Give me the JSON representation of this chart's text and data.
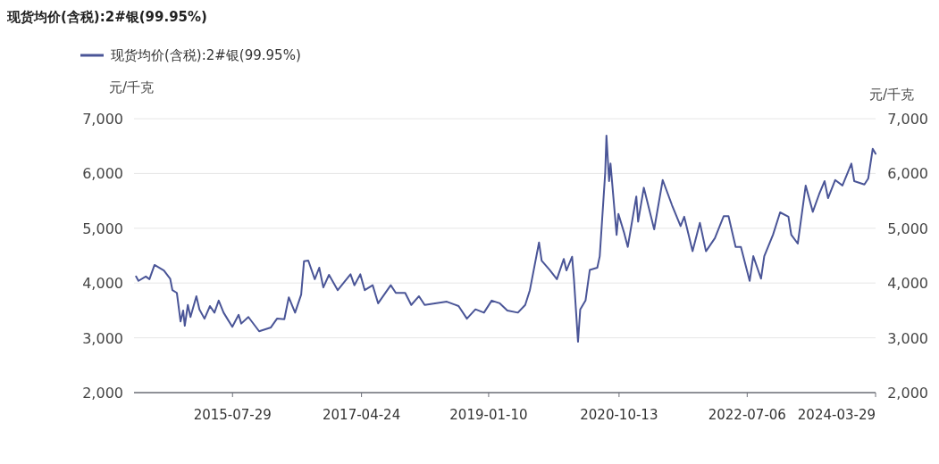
{
  "chart_data": {
    "type": "line",
    "title": "现货均价(含税):2#银(99.95%)",
    "ylabel": "元/千克",
    "y2label": "元/千克",
    "xlim": [
      "2014-03-31",
      "2024-03-29"
    ],
    "xticks": [
      {
        "value": "2015-07-29",
        "label": "2015-07-29"
      },
      {
        "value": "2017-04-24",
        "label": "2017-04-24"
      },
      {
        "value": "2019-01-10",
        "label": "2019-01-10"
      },
      {
        "value": "2020-10-13",
        "label": "2020-10-13"
      },
      {
        "value": "2022-07-06",
        "label": "2022-07-06"
      },
      {
        "value": "2024-03-29",
        "label": "2024-03-29"
      }
    ],
    "ylim": [
      2000,
      7000
    ],
    "yticks": [
      {
        "value": 2000,
        "label": "2,000"
      },
      {
        "value": 3000,
        "label": "3,000"
      },
      {
        "value": 4000,
        "label": "4,000"
      },
      {
        "value": 5000,
        "label": "5,000"
      },
      {
        "value": 6000,
        "label": "6,000"
      },
      {
        "value": 7000,
        "label": "7,000"
      }
    ],
    "y2lim": [
      2000,
      7000
    ],
    "y2ticks": [
      {
        "value": 2000,
        "label": "2,000"
      },
      {
        "value": 3000,
        "label": "3,000"
      },
      {
        "value": 4000,
        "label": "4,000"
      },
      {
        "value": 5000,
        "label": "5,000"
      },
      {
        "value": 6000,
        "label": "6,000"
      },
      {
        "value": 7000,
        "label": "7,000"
      }
    ],
    "grid": "y",
    "legend": "top left",
    "marker": "none",
    "line_style": "solid",
    "series": [
      {
        "name": "现货均价(含税):2#银(99.95%)",
        "color": "#4a5597",
        "x": [
          "2014-04-10",
          "2014-04-22",
          "2014-05-28",
          "2014-06-15",
          "2014-07-10",
          "2014-08-25",
          "2014-09-25",
          "2014-10-06",
          "2014-10-28",
          "2014-11-15",
          "2014-11-28",
          "2014-12-06",
          "2014-12-21",
          "2015-01-03",
          "2015-02-01",
          "2015-02-16",
          "2015-03-13",
          "2015-04-09",
          "2015-05-01",
          "2015-05-22",
          "2015-06-15",
          "2015-07-28",
          "2015-08-28",
          "2015-09-10",
          "2015-10-15",
          "2015-12-07",
          "2016-02-03",
          "2016-03-04",
          "2016-04-09",
          "2016-05-01",
          "2016-06-01",
          "2016-07-01",
          "2016-07-15",
          "2016-08-05",
          "2016-09-06",
          "2016-09-28",
          "2016-10-18",
          "2016-11-15",
          "2016-12-28",
          "2017-03-01",
          "2017-03-20",
          "2017-04-18",
          "2017-05-10",
          "2017-06-18",
          "2017-07-15",
          "2017-09-15",
          "2017-10-10",
          "2017-11-25",
          "2017-12-25",
          "2018-02-01",
          "2018-03-01",
          "2018-06-18",
          "2018-08-15",
          "2018-09-25",
          "2018-11-06",
          "2018-12-18",
          "2019-01-25",
          "2019-03-06",
          "2019-04-12",
          "2019-06-03",
          "2019-07-09",
          "2019-08-01",
          "2019-09-15",
          "2019-09-28",
          "2019-11-06",
          "2019-12-12",
          "2020-01-15",
          "2020-01-28",
          "2020-02-25",
          "2020-03-05",
          "2020-03-25",
          "2020-04-05",
          "2020-05-01",
          "2020-05-22",
          "2020-06-28",
          "2020-07-10",
          "2020-08-06",
          "2020-08-12",
          "2020-08-25",
          "2020-09-01",
          "2020-10-01",
          "2020-10-10",
          "2020-11-06",
          "2020-11-25",
          "2021-01-06",
          "2021-01-15",
          "2021-02-12",
          "2021-04-04",
          "2021-05-16",
          "2021-07-01",
          "2021-08-12",
          "2021-08-30",
          "2021-10-10",
          "2021-11-15",
          "2021-12-15",
          "2022-01-28",
          "2022-03-12",
          "2022-04-05",
          "2022-05-10",
          "2022-06-05",
          "2022-07-18",
          "2022-08-05",
          "2022-09-12",
          "2022-09-28",
          "2022-11-10",
          "2022-12-15",
          "2023-01-25",
          "2023-02-08",
          "2023-03-12",
          "2023-04-20",
          "2023-05-25",
          "2023-06-25",
          "2023-07-22",
          "2023-08-08",
          "2023-09-12",
          "2023-10-18",
          "2023-12-01",
          "2023-12-15",
          "2024-02-03",
          "2024-02-22",
          "2024-03-15",
          "2024-03-29"
        ],
        "values": [
          4120,
          4040,
          4120,
          4070,
          4330,
          4230,
          4080,
          3870,
          3820,
          3300,
          3500,
          3220,
          3600,
          3380,
          3760,
          3520,
          3350,
          3580,
          3460,
          3680,
          3460,
          3200,
          3420,
          3260,
          3380,
          3120,
          3190,
          3350,
          3340,
          3740,
          3460,
          3790,
          4400,
          4410,
          4070,
          4280,
          3920,
          4150,
          3870,
          4160,
          3960,
          4160,
          3870,
          3960,
          3630,
          3960,
          3820,
          3820,
          3600,
          3760,
          3600,
          3660,
          3580,
          3350,
          3520,
          3460,
          3680,
          3630,
          3500,
          3460,
          3600,
          3870,
          4740,
          4410,
          4240,
          4070,
          4440,
          4230,
          4480,
          4070,
          2930,
          3520,
          3680,
          4240,
          4280,
          4490,
          6020,
          6690,
          5860,
          6180,
          4880,
          5260,
          4930,
          4660,
          5580,
          5120,
          5740,
          4980,
          5880,
          5420,
          5040,
          5210,
          4580,
          5100,
          4580,
          4820,
          5220,
          5220,
          4660,
          4660,
          4040,
          4490,
          4080,
          4490,
          4880,
          5290,
          5210,
          4880,
          4720,
          5780,
          5300,
          5620,
          5860,
          5550,
          5880,
          5780,
          6180,
          5860,
          5800,
          5910,
          6450,
          6360
        ]
      }
    ]
  }
}
